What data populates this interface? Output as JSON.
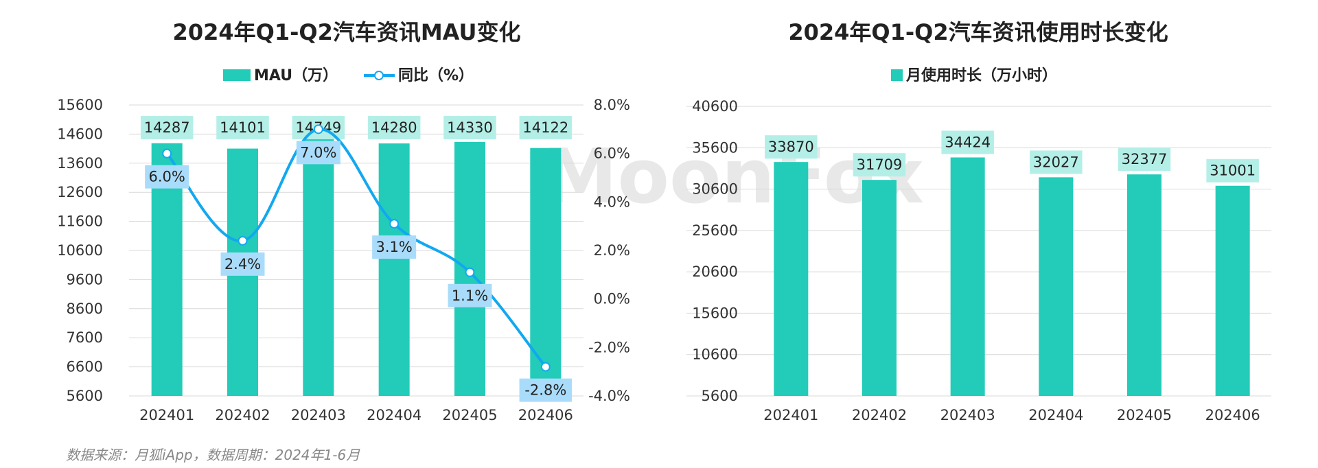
{
  "colors": {
    "bar": "#22ccb8",
    "line": "#12a8f0",
    "bar_label_bg": "#b4efe7",
    "line_label_bg": "#a9dcfa",
    "grid": "#d9d9d9"
  },
  "watermark": "MoonFox",
  "source": "数据来源：月狐iApp，数据周期：2024年1-6月",
  "chart_data": [
    {
      "type": "bar",
      "title": "2024年Q1-Q2汽车资讯MAU变化",
      "categories": [
        "202401",
        "202402",
        "202403",
        "202404",
        "202405",
        "202406"
      ],
      "series": [
        {
          "name": "MAU（万）",
          "type": "bar",
          "values": [
            14287,
            14101,
            14749,
            14280,
            14330,
            14122
          ],
          "labels": [
            "14287",
            "14101",
            "14749",
            "14280",
            "14330",
            "14122"
          ]
        },
        {
          "name": "同比（%）",
          "type": "line",
          "axis": "right",
          "values": [
            6.0,
            2.4,
            7.0,
            3.1,
            1.1,
            -2.8
          ],
          "labels": [
            "6.0%",
            "2.4%",
            "7.0%",
            "3.1%",
            "1.1%",
            "-2.8%"
          ]
        }
      ],
      "ylim": [
        5600,
        15600
      ],
      "yticks": [
        "15600",
        "14600",
        "13600",
        "12600",
        "11600",
        "10600",
        "9600",
        "8600",
        "7600",
        "6600",
        "5600"
      ],
      "ylim_right": [
        -4.0,
        8.0
      ],
      "yticks_right": [
        "8.0%",
        "6.0%",
        "4.0%",
        "2.0%",
        "0.0%",
        "-2.0%",
        "-4.0%"
      ],
      "grid": true,
      "legend": "top-center"
    },
    {
      "type": "bar",
      "title": "2024年Q1-Q2汽车资讯使用时长变化",
      "categories": [
        "202401",
        "202402",
        "202403",
        "202404",
        "202405",
        "202406"
      ],
      "series": [
        {
          "name": "月使用时长（万小时）",
          "type": "bar",
          "values": [
            33870,
            31709,
            34424,
            32027,
            32377,
            31001
          ],
          "labels": [
            "33870",
            "31709",
            "34424",
            "32027",
            "32377",
            "31001"
          ]
        }
      ],
      "ylim": [
        5600,
        40600
      ],
      "yticks": [
        "40600",
        "35600",
        "30600",
        "25600",
        "20600",
        "15600",
        "10600",
        "5600"
      ],
      "grid": true,
      "legend": "top-center"
    }
  ]
}
